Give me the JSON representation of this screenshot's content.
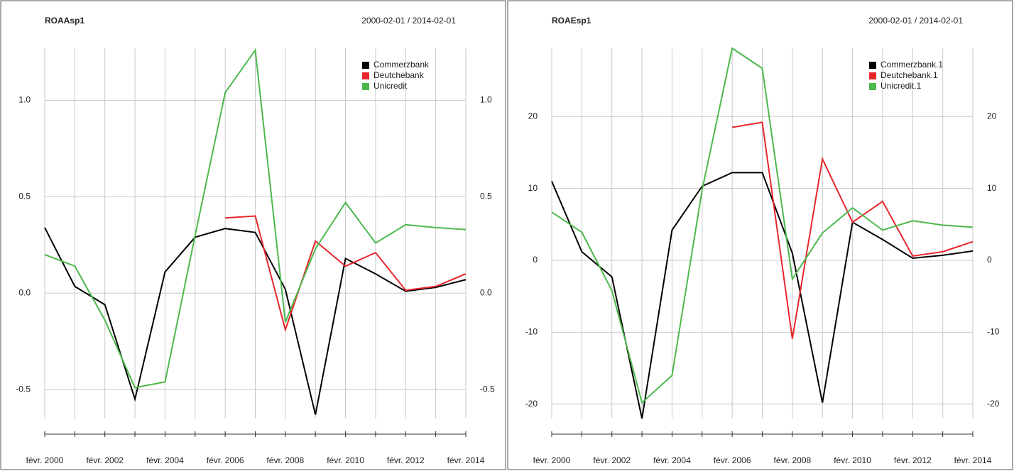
{
  "chart_data": [
    {
      "type": "line",
      "title": "ROAAsp1",
      "subtitle": "2000-02-01 / 2014-02-01",
      "categories": [
        "févr. 2000",
        null,
        "févr. 2002",
        null,
        "févr. 2004",
        null,
        "févr. 2006",
        null,
        "févr. 2008",
        null,
        "févr. 2010",
        null,
        "févr. 2012",
        null,
        "févr. 2014"
      ],
      "ylim": [
        -0.65,
        1.27
      ],
      "yticks": [
        {
          "value": -0.5,
          "label": "-0.5"
        },
        0.5,
        {
          "value": 0,
          "label": "0.0"
        },
        {
          "value": 1,
          "label": "1.0"
        }
      ],
      "grid": true,
      "legend": "topright",
      "series": [
        {
          "name": "Commerzbank",
          "color": "#000000",
          "values": [
            0.34,
            0.035,
            -0.06,
            -0.55,
            0.11,
            0.29,
            0.335,
            0.315,
            0.02,
            -0.63,
            0.18,
            0.1,
            0.01,
            0.03,
            0.07
          ]
        },
        {
          "name": "Deutchebank",
          "color": "#e8262a",
          "values": [
            null,
            null,
            null,
            null,
            null,
            null,
            0.39,
            0.4,
            -0.19,
            0.27,
            0.14,
            0.21,
            0.015,
            0.035,
            0.1
          ]
        },
        {
          "name": "Unicredit",
          "color": "#4cb84c",
          "values": [
            0.2,
            0.14,
            -0.14,
            -0.49,
            -0.46,
            0.3,
            1.04,
            1.26,
            -0.15,
            0.23,
            0.47,
            0.26,
            0.355,
            0.34,
            0.33
          ]
        }
      ]
    },
    {
      "type": "line",
      "title": "ROAEsp1",
      "subtitle": "2000-02-01 / 2014-02-01",
      "categories": [
        "févr. 2000",
        null,
        "févr. 2002",
        null,
        "févr. 2004",
        null,
        "févr. 2006",
        null,
        "févr. 2008",
        null,
        "févr. 2010",
        null,
        "févr. 2012",
        null,
        "févr. 2014"
      ],
      "ylim": [
        -22,
        29.5
      ],
      "yticks": [
        -20,
        -10,
        0,
        10,
        20
      ],
      "grid": true,
      "legend": "topright",
      "series": [
        {
          "name": "Commerzbank.1",
          "color": "#000000",
          "values": [
            11,
            1.2,
            -2.3,
            -22,
            4.2,
            10.3,
            12.2,
            12.2,
            1,
            -19.8,
            5.3,
            2.9,
            0.3,
            0.7,
            1.3
          ]
        },
        {
          "name": "Deutchebank.1",
          "color": "#e8262a",
          "values": [
            null,
            null,
            null,
            null,
            null,
            null,
            18.5,
            19.2,
            -10.9,
            14.1,
            5.3,
            8.2,
            0.6,
            1.2,
            2.6
          ]
        },
        {
          "name": "Unicredit.1",
          "color": "#4cb84c",
          "values": [
            6.7,
            3.9,
            -4.2,
            -19.8,
            -16,
            9.8,
            29.5,
            26.7,
            -2.6,
            3.8,
            7.3,
            4.2,
            5.5,
            4.9,
            4.6
          ]
        }
      ]
    }
  ]
}
